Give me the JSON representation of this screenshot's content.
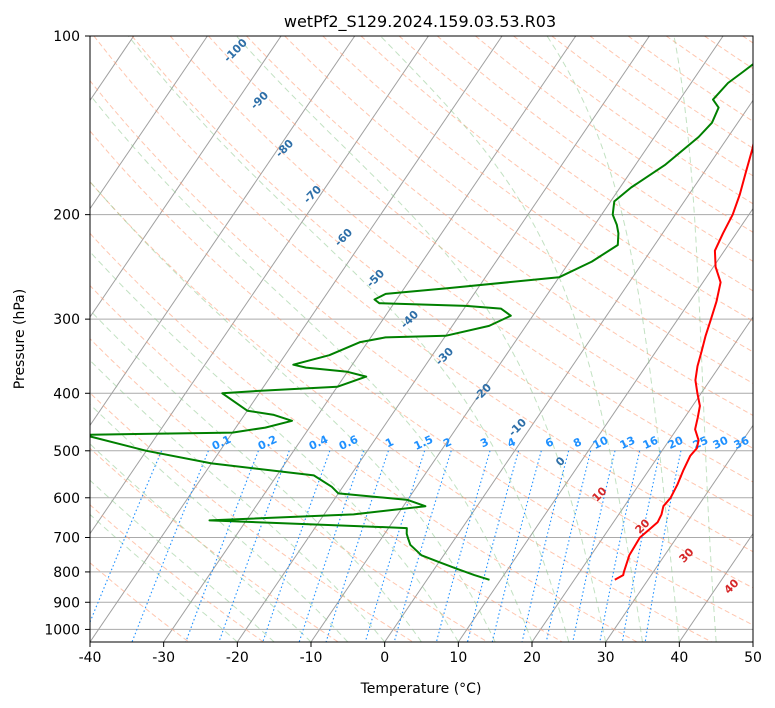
{
  "chart_data": {
    "type": "line",
    "title": "wetPf2_S129.2024.159.03.53.R03",
    "xlabel": "Temperature (°C)",
    "ylabel": "Pressure (hPa)",
    "xlim": [
      -40,
      50
    ],
    "ylim": [
      1050,
      100
    ],
    "y_scale": "log",
    "grid": true,
    "x_ticks": [
      "-40",
      "-30",
      "-20",
      "-10",
      "0",
      "10",
      "20",
      "30",
      "40",
      "50"
    ],
    "y_ticks": [
      "100",
      "200",
      "300",
      "400",
      "500",
      "600",
      "700",
      "800",
      "900",
      "1000"
    ],
    "colors": {
      "temperature": "#ff0000",
      "dewpoint": "#008000",
      "isotherm": "#a0a0a0",
      "dry_adiabat": "#ffa07a",
      "moist_adiabat": "#90c890",
      "mixing_ratio": "#1e90ff",
      "moist_label": "#2e6fa8",
      "dry_label": "#d62728"
    },
    "series": [
      {
        "points": [
          [
            25.5,
            825
          ],
          [
            26.2,
            810
          ],
          [
            26,
            800
          ],
          [
            25.2,
            750
          ],
          [
            25,
            700
          ],
          [
            25.5,
            680
          ],
          [
            26,
            660
          ],
          [
            25.8,
            640
          ],
          [
            25.3,
            620
          ],
          [
            25.5,
            600
          ],
          [
            25.2,
            570
          ],
          [
            24.7,
            540
          ],
          [
            24.3,
            510
          ],
          [
            24.5,
            495
          ],
          [
            24,
            480
          ],
          [
            22.5,
            460
          ],
          [
            21.8,
            440
          ],
          [
            21,
            420
          ],
          [
            19.5,
            400
          ],
          [
            18,
            380
          ],
          [
            17,
            360
          ],
          [
            16.2,
            340
          ],
          [
            15.3,
            320
          ],
          [
            14.5,
            300
          ],
          [
            13.6,
            280
          ],
          [
            12.4,
            260
          ],
          [
            10.3,
            245
          ],
          [
            8.7,
            230
          ],
          [
            8.2,
            215
          ],
          [
            7.8,
            200
          ],
          [
            6.9,
            185
          ],
          [
            5.7,
            170
          ],
          [
            4.4,
            155
          ],
          [
            3.3,
            145
          ],
          [
            2.3,
            135
          ],
          [
            2.2,
            125
          ],
          [
            1.9,
            115
          ],
          [
            1.3,
            105
          ],
          [
            1.2,
            100
          ]
        ]
      },
      {
        "points": [
          [
            8.5,
            825
          ],
          [
            6,
            810
          ],
          [
            3,
            790
          ],
          [
            0,
            770
          ],
          [
            -3,
            750
          ],
          [
            -5.5,
            720
          ],
          [
            -6.5,
            700
          ],
          [
            -7,
            690
          ],
          [
            -7.5,
            675
          ],
          [
            -14,
            670
          ],
          [
            -35,
            655
          ],
          [
            -16,
            640
          ],
          [
            -7,
            620
          ],
          [
            -10,
            605
          ],
          [
            -20,
            590
          ],
          [
            -21.5,
            575
          ],
          [
            -25,
            550
          ],
          [
            -40,
            525
          ],
          [
            -50,
            500
          ],
          [
            -60,
            470
          ],
          [
            -40,
            466
          ],
          [
            -36,
            457
          ],
          [
            -33,
            445
          ],
          [
            -36,
            435
          ],
          [
            -40,
            428
          ],
          [
            -45,
            400
          ],
          [
            -40,
            396
          ],
          [
            -30,
            390
          ],
          [
            -27,
            375
          ],
          [
            -30,
            368
          ],
          [
            -36,
            362
          ],
          [
            -38,
            358
          ],
          [
            -34,
            345
          ],
          [
            -31,
            328
          ],
          [
            -28,
            322
          ],
          [
            -20,
            320
          ],
          [
            -15,
            308
          ],
          [
            -13,
            296
          ],
          [
            -15,
            288
          ],
          [
            -20,
            285
          ],
          [
            -32,
            282
          ],
          [
            -33,
            278
          ],
          [
            -32,
            272
          ],
          [
            -24,
            266
          ],
          [
            -10,
            255
          ],
          [
            -7,
            240
          ],
          [
            -5,
            225
          ],
          [
            -6,
            215
          ],
          [
            -7,
            208
          ],
          [
            -8.5,
            200
          ],
          [
            -9.5,
            190
          ],
          [
            -8.5,
            180
          ],
          [
            -6,
            165
          ],
          [
            -4,
            148
          ],
          [
            -3.5,
            140
          ],
          [
            -4,
            132
          ],
          [
            -5.5,
            128
          ],
          [
            -5,
            120
          ],
          [
            -4,
            115
          ],
          [
            -3,
            110
          ],
          [
            -0.5,
            104
          ],
          [
            0.2,
            100
          ]
        ]
      }
    ],
    "moist_adiabat_labels": [
      "-100",
      "-90",
      "-80",
      "-70",
      "-60",
      "-50",
      "-40",
      "-30",
      "-20",
      "-10",
      "0"
    ],
    "dry_adiabat_labels": [
      "10",
      "20",
      "30",
      "40"
    ],
    "mixing_ratio_labels": [
      "0.1",
      "0.2",
      "0.4",
      "0.6",
      "1",
      "1.5",
      "2",
      "3",
      "4",
      "6",
      "8",
      "10",
      "13",
      "16",
      "20",
      "25",
      "30",
      "36"
    ]
  }
}
